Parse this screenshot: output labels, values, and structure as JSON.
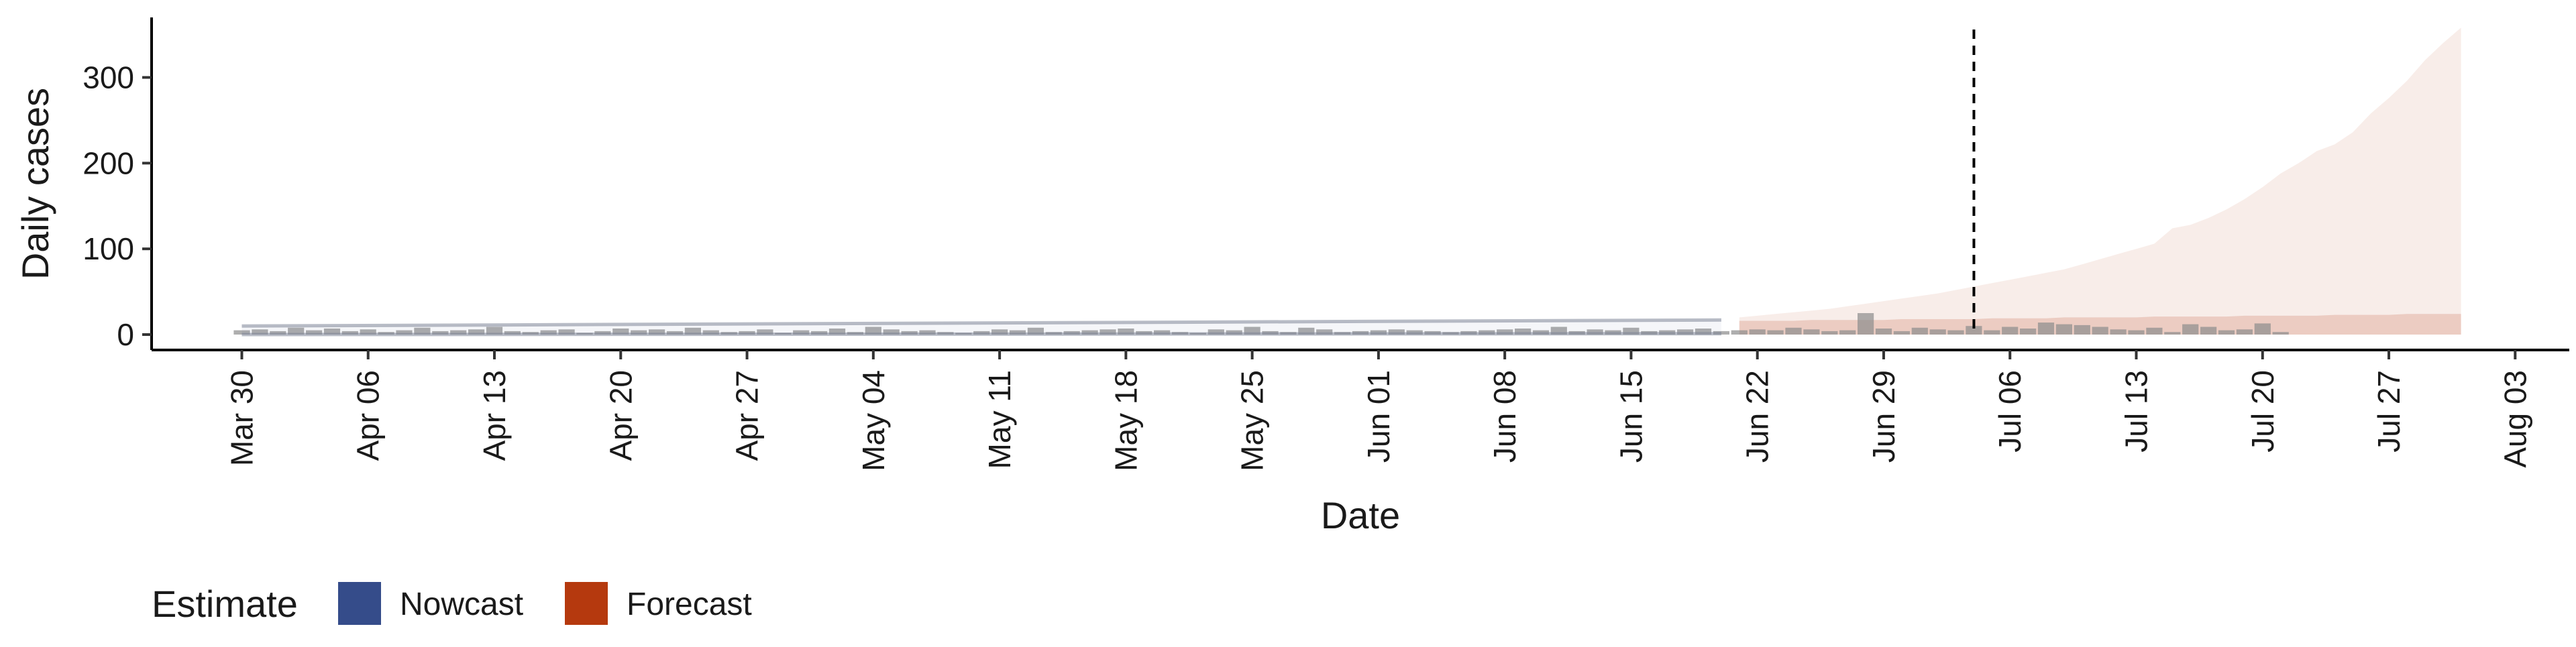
{
  "chart_data": {
    "type": "area",
    "title": "",
    "xlabel": "Date",
    "ylabel": "Daily cases",
    "x_range": [
      "2020-03-25",
      "2020-08-06"
    ],
    "ylim": [
      -18,
      370
    ],
    "x_ticks": [
      {
        "date": "2020-03-30",
        "label": "Mar 30"
      },
      {
        "date": "2020-04-06",
        "label": "Apr 06"
      },
      {
        "date": "2020-04-13",
        "label": "Apr 13"
      },
      {
        "date": "2020-04-20",
        "label": "Apr 20"
      },
      {
        "date": "2020-04-27",
        "label": "Apr 27"
      },
      {
        "date": "2020-05-04",
        "label": "May 04"
      },
      {
        "date": "2020-05-11",
        "label": "May 11"
      },
      {
        "date": "2020-05-18",
        "label": "May 18"
      },
      {
        "date": "2020-05-25",
        "label": "May 25"
      },
      {
        "date": "2020-06-01",
        "label": "Jun 01"
      },
      {
        "date": "2020-06-08",
        "label": "Jun 08"
      },
      {
        "date": "2020-06-15",
        "label": "Jun 15"
      },
      {
        "date": "2020-06-22",
        "label": "Jun 22"
      },
      {
        "date": "2020-06-29",
        "label": "Jun 29"
      },
      {
        "date": "2020-07-06",
        "label": "Jul 06"
      },
      {
        "date": "2020-07-13",
        "label": "Jul 13"
      },
      {
        "date": "2020-07-20",
        "label": "Jul 20"
      },
      {
        "date": "2020-07-27",
        "label": "Jul 27"
      },
      {
        "date": "2020-08-03",
        "label": "Aug 03"
      }
    ],
    "y_ticks": [
      0,
      100,
      200,
      300
    ],
    "grid": false,
    "legend": {
      "title": "Estimate",
      "position": "bottom-left",
      "items": [
        {
          "name": "Nowcast",
          "color": "#354c8a"
        },
        {
          "name": "Forecast",
          "color": "#b5390e"
        }
      ]
    },
    "vline": {
      "date": "2020-07-04",
      "style": "dashed"
    },
    "bars": {
      "start": "2020-03-30",
      "values": [
        5,
        6,
        4,
        8,
        5,
        7,
        4,
        6,
        3,
        5,
        8,
        4,
        5,
        6,
        9,
        4,
        3,
        5,
        6,
        2,
        4,
        7,
        5,
        6,
        4,
        8,
        5,
        3,
        4,
        6,
        2,
        5,
        4,
        7,
        3,
        9,
        6,
        4,
        5,
        3,
        2,
        4,
        6,
        5,
        8,
        3,
        4,
        5,
        6,
        7,
        4,
        5,
        3,
        2,
        6,
        5,
        9,
        4,
        3,
        8,
        6,
        3,
        4,
        5,
        6,
        5,
        4,
        3,
        4,
        5,
        6,
        7,
        5,
        9,
        4,
        6,
        5,
        8,
        4,
        5,
        6,
        7,
        4,
        5,
        6,
        5,
        8,
        6,
        4,
        5,
        25,
        7,
        4,
        8,
        6,
        5,
        10,
        5,
        9,
        7,
        14,
        12,
        11,
        9,
        6,
        5,
        8,
        3,
        12,
        9,
        5,
        6,
        13,
        3
      ],
      "color": "#8c8c8c"
    },
    "nowcast": {
      "start": "2020-03-30",
      "end": "2020-06-20",
      "lower_start": 0,
      "lower_end": 1,
      "upper_start": 10,
      "upper_end": 17,
      "color": "#354c8a"
    },
    "forecast": {
      "start": "2020-06-21",
      "end": "2020-07-31",
      "band_lower": [
        0,
        0,
        0,
        0,
        0,
        0,
        0,
        0,
        0,
        0,
        0,
        0,
        0,
        0,
        0,
        0,
        0,
        0,
        0,
        0,
        0,
        0,
        0,
        0,
        0,
        0,
        0,
        0,
        0,
        0,
        0,
        0,
        0,
        0,
        0,
        0,
        0,
        0,
        0,
        0,
        0
      ],
      "band_upper": [
        20,
        22,
        24,
        26,
        28,
        30,
        33,
        36,
        39,
        42,
        45,
        48,
        52,
        56,
        60,
        64,
        68,
        72,
        76,
        82,
        88,
        94,
        100,
        106,
        124,
        128,
        136,
        146,
        158,
        172,
        188,
        200,
        214,
        222,
        236,
        258,
        276,
        296,
        320,
        340,
        358
      ],
      "inner_upper": [
        16,
        16,
        16,
        16,
        17,
        17,
        17,
        17,
        17,
        18,
        18,
        18,
        18,
        18,
        19,
        19,
        19,
        19,
        20,
        20,
        20,
        20,
        20,
        21,
        21,
        21,
        21,
        21,
        22,
        22,
        22,
        22,
        22,
        23,
        23,
        23,
        23,
        24,
        24,
        24,
        24
      ],
      "color": "#b5390e"
    }
  }
}
